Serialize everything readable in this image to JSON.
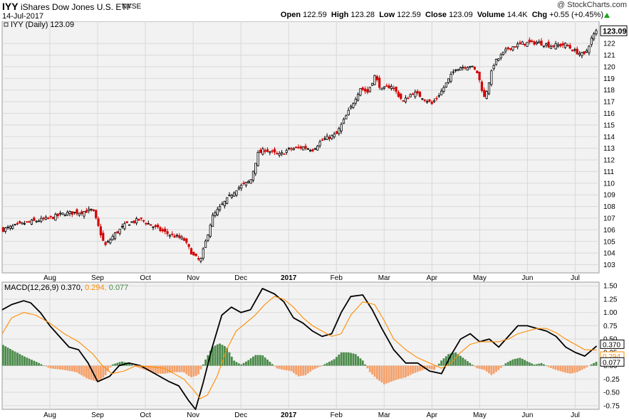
{
  "header": {
    "ticker": "IYY",
    "name": "iShares Dow Jones U.S. ETF",
    "exchange": "NYSE",
    "date": "14-Jul-2017",
    "brand": "@ StockCharts.com",
    "open_label": "Open",
    "open": "122.59",
    "high_label": "High",
    "high": "123.28",
    "low_label": "Low",
    "low": "122.59",
    "close_label": "Close",
    "close": "123.09",
    "volume_label": "Volume",
    "volume": "14.4K",
    "chg_label": "Chg",
    "chg": "+0.55 (+0.45%)"
  },
  "colors": {
    "up": "#000000",
    "down": "#d40000",
    "macd": "#000000",
    "signal": "#ff8c00",
    "hist_pos": "#4a8a4a",
    "hist_neg": "#f4a06a",
    "grid": "#d9d9d9",
    "plot_bg": "#f2f2f2"
  },
  "chart_data": [
    {
      "type": "candlestick",
      "legend": "IYY (Daily) 123.09",
      "last_value_label": "123.09",
      "x_tick_labels": [
        "Aug",
        "Sep",
        "Oct",
        "Nov",
        "Dec",
        "2017",
        "Feb",
        "Mar",
        "Apr",
        "May",
        "Jun",
        "Jul"
      ],
      "x_tick_months": [
        1,
        2,
        3,
        4,
        5,
        6,
        7,
        8,
        9,
        10,
        11,
        12
      ],
      "x_range_months": [
        0,
        12.5
      ],
      "y_ticks": [
        103,
        104,
        105,
        106,
        107,
        108,
        109,
        110,
        111,
        112,
        113,
        114,
        115,
        116,
        117,
        118,
        119,
        120,
        121,
        122
      ],
      "ylim": [
        102.3,
        123.9
      ],
      "close_path": {
        "month": [
          0.0,
          0.5,
          1.0,
          1.3,
          1.6,
          1.9,
          2.15,
          2.35,
          2.6,
          2.9,
          3.2,
          3.5,
          3.8,
          4.0,
          4.15,
          4.4,
          4.6,
          4.9,
          5.2,
          5.35,
          5.5,
          5.8,
          6.0,
          6.3,
          6.5,
          6.7,
          7.0,
          7.3,
          7.5,
          7.65,
          7.8,
          7.95,
          8.15,
          8.4,
          8.6,
          8.8,
          9.0,
          9.2,
          9.5,
          9.8,
          9.95,
          10.1,
          10.3,
          10.6,
          10.9,
          11.2,
          11.5,
          11.8,
          12.0,
          12.2,
          12.35,
          12.45
        ],
        "close": [
          106.0,
          106.6,
          107.0,
          107.4,
          107.5,
          107.7,
          104.6,
          105.6,
          106.5,
          106.9,
          106.2,
          105.6,
          105.2,
          103.8,
          103.3,
          107.1,
          108.1,
          109.5,
          110.2,
          112.5,
          112.9,
          112.4,
          112.9,
          113.1,
          112.9,
          113.7,
          114.2,
          116.5,
          118.2,
          117.8,
          119.2,
          118.0,
          118.4,
          117.0,
          117.8,
          117.4,
          116.8,
          117.9,
          119.9,
          120.1,
          119.5,
          117.3,
          120.3,
          121.6,
          122.0,
          122.1,
          121.8,
          121.9,
          121.3,
          121.0,
          122.5,
          123.09
        ]
      }
    },
    {
      "type": "line",
      "legend_label": "MACD(12,26,9)",
      "legend_values": [
        "0.370",
        "0.294",
        "0.077"
      ],
      "right_labels": [
        "0.370",
        "0.294",
        "0.077"
      ],
      "x_tick_labels": [
        "Aug",
        "Sep",
        "Oct",
        "Nov",
        "Dec",
        "2017",
        "Feb",
        "Mar",
        "Apr",
        "May",
        "Jun",
        "Jul"
      ],
      "y_ticks": [
        -0.75,
        -0.5,
        -0.25,
        0.0,
        0.25,
        0.5,
        0.75,
        1.0,
        1.25,
        1.5
      ],
      "y_tick_labels": [
        "-0.75",
        "-0.50",
        "-0.25",
        "0.00",
        "0.25",
        "0.50",
        "0.75",
        "1.00",
        "1.25",
        "1.50"
      ],
      "ylim": [
        -0.82,
        1.57
      ],
      "series": [
        {
          "key": "macd",
          "x": [
            0.0,
            0.2,
            0.45,
            0.6,
            0.8,
            1.0,
            1.2,
            1.4,
            1.6,
            1.8,
            2.0,
            2.25,
            2.45,
            2.65,
            2.9,
            3.1,
            3.3,
            3.5,
            3.7,
            3.9,
            4.05,
            4.2,
            4.4,
            4.6,
            4.8,
            5.0,
            5.2,
            5.45,
            5.7,
            5.9,
            6.1,
            6.3,
            6.5,
            6.7,
            6.9,
            7.1,
            7.3,
            7.55,
            7.75,
            7.95,
            8.2,
            8.45,
            8.7,
            8.95,
            9.2,
            9.4,
            9.6,
            9.8,
            10.0,
            10.2,
            10.4,
            10.6,
            10.8,
            11.0,
            11.2,
            11.4,
            11.6,
            11.8,
            12.0,
            12.2,
            12.45
          ],
          "y": [
            1.05,
            1.15,
            1.22,
            1.18,
            1.0,
            0.75,
            0.55,
            0.35,
            0.3,
            0.05,
            -0.3,
            -0.2,
            0.0,
            0.05,
            0.0,
            -0.1,
            -0.2,
            -0.3,
            -0.38,
            -0.65,
            -0.82,
            -0.35,
            0.35,
            0.95,
            1.1,
            1.0,
            1.05,
            1.45,
            1.35,
            1.2,
            0.9,
            0.8,
            0.65,
            0.55,
            0.6,
            1.0,
            1.3,
            1.33,
            1.05,
            0.7,
            0.3,
            0.05,
            0.05,
            -0.1,
            -0.15,
            0.2,
            0.5,
            0.6,
            0.45,
            0.5,
            0.35,
            0.55,
            0.75,
            0.75,
            0.7,
            0.65,
            0.55,
            0.35,
            0.25,
            0.18,
            0.37
          ]
        },
        {
          "key": "signal",
          "x": [
            0.0,
            0.2,
            0.45,
            0.7,
            1.0,
            1.3,
            1.6,
            1.9,
            2.1,
            2.3,
            2.55,
            2.8,
            3.1,
            3.4,
            3.6,
            3.8,
            4.0,
            4.15,
            4.3,
            4.5,
            4.7,
            4.9,
            5.1,
            5.3,
            5.5,
            5.7,
            5.9,
            6.1,
            6.3,
            6.5,
            6.7,
            6.9,
            7.1,
            7.3,
            7.55,
            7.8,
            8.0,
            8.2,
            8.45,
            8.7,
            8.95,
            9.2,
            9.4,
            9.6,
            9.8,
            10.0,
            10.2,
            10.4,
            10.6,
            10.8,
            11.0,
            11.2,
            11.4,
            11.6,
            11.8,
            12.0,
            12.2,
            12.45
          ],
          "y": [
            0.6,
            0.9,
            1.0,
            0.95,
            0.8,
            0.6,
            0.45,
            0.22,
            0.0,
            -0.15,
            -0.1,
            0.0,
            -0.02,
            -0.05,
            -0.15,
            -0.25,
            -0.45,
            -0.62,
            -0.55,
            -0.2,
            0.3,
            0.65,
            0.8,
            0.95,
            1.15,
            1.3,
            1.25,
            1.1,
            0.9,
            0.75,
            0.65,
            0.55,
            0.6,
            0.95,
            1.2,
            1.15,
            0.85,
            0.5,
            0.3,
            0.15,
            0.05,
            -0.05,
            0.05,
            0.25,
            0.4,
            0.45,
            0.45,
            0.45,
            0.5,
            0.6,
            0.65,
            0.7,
            0.7,
            0.62,
            0.5,
            0.4,
            0.3,
            0.294
          ]
        }
      ],
      "histogram": {
        "x": [
          0.0,
          0.2,
          0.45,
          0.7,
          1.0,
          1.3,
          1.55,
          1.8,
          2.0,
          2.15,
          2.3,
          2.5,
          2.65,
          2.8,
          3.0,
          3.2,
          3.4,
          3.6,
          3.8,
          3.95,
          4.1,
          4.25,
          4.4,
          4.55,
          4.7,
          4.85,
          5.0,
          5.15,
          5.3,
          5.45,
          5.6,
          5.75,
          5.9,
          6.05,
          6.2,
          6.35,
          6.5,
          6.65,
          6.8,
          6.95,
          7.1,
          7.25,
          7.4,
          7.55,
          7.7,
          7.85,
          8.0,
          8.15,
          8.3,
          8.45,
          8.6,
          8.75,
          8.9,
          9.05,
          9.2,
          9.35,
          9.5,
          9.65,
          9.8,
          9.95,
          10.1,
          10.25,
          10.4,
          10.55,
          10.7,
          10.85,
          11.0,
          11.15,
          11.3,
          11.45,
          11.6,
          11.75,
          11.9,
          12.05,
          12.2,
          12.35,
          12.45
        ],
        "y": [
          0.4,
          0.3,
          0.18,
          0.08,
          -0.05,
          -0.08,
          -0.12,
          -0.25,
          -0.3,
          -0.2,
          0.02,
          0.08,
          0.05,
          -0.02,
          -0.08,
          -0.15,
          -0.15,
          -0.12,
          -0.12,
          -0.22,
          -0.18,
          0.1,
          0.35,
          0.42,
          0.35,
          0.1,
          0.02,
          0.1,
          0.2,
          0.2,
          0.08,
          -0.05,
          -0.08,
          -0.1,
          -0.2,
          -0.18,
          -0.08,
          -0.02,
          0.05,
          0.12,
          0.25,
          0.25,
          0.22,
          0.1,
          -0.12,
          -0.25,
          -0.35,
          -0.3,
          -0.25,
          -0.22,
          -0.15,
          -0.1,
          -0.05,
          -0.08,
          0.1,
          0.22,
          0.25,
          0.15,
          0.05,
          -0.05,
          -0.08,
          -0.18,
          -0.08,
          0.05,
          0.12,
          0.15,
          0.08,
          0.02,
          0.05,
          -0.03,
          -0.08,
          -0.12,
          -0.15,
          -0.12,
          -0.05,
          0.03,
          0.077
        ]
      }
    }
  ]
}
